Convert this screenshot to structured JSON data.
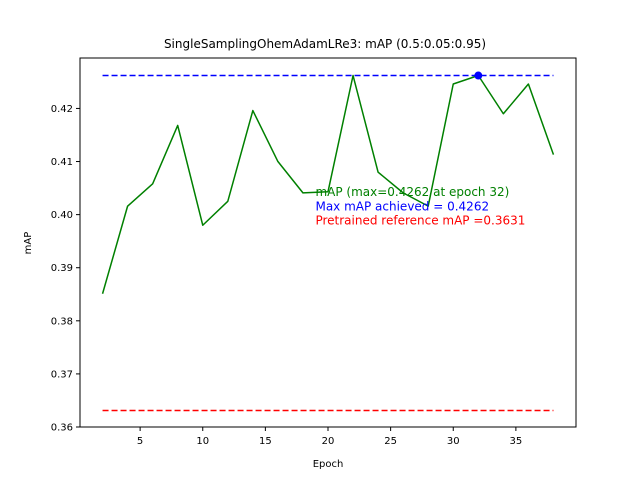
{
  "chart_data": {
    "type": "line",
    "title": "SingleSamplingOhemAdamLRe3:  mAP (0.5:0.05:0.95)",
    "xlabel": "Epoch",
    "ylabel": "mAP",
    "xlim": [
      0.2,
      39.8
    ],
    "ylim": [
      0.36,
      0.4295
    ],
    "xticks": [
      5,
      10,
      15,
      20,
      25,
      30,
      35
    ],
    "yticks": [
      0.36,
      0.37,
      0.38,
      0.39,
      0.4,
      0.41,
      0.42
    ],
    "ytick_labels": [
      "0.36",
      "0.37",
      "0.38",
      "0.39",
      "0.40",
      "0.41",
      "0.42"
    ],
    "grid": false,
    "series": [
      {
        "color": "#008000",
        "x": [
          2,
          4,
          6,
          8,
          10,
          12,
          14,
          16,
          18,
          20,
          22,
          24,
          26,
          28,
          30,
          32,
          34,
          36,
          38
        ],
        "y": [
          0.3851,
          0.4016,
          0.4058,
          0.4168,
          0.398,
          0.4025,
          0.4196,
          0.41,
          0.4041,
          0.4043,
          0.4262,
          0.408,
          0.4041,
          0.4016,
          0.4246,
          0.4262,
          0.419,
          0.4246,
          0.4113
        ]
      }
    ],
    "hlines": [
      {
        "y": 0.4262,
        "x_from": 2,
        "x_to": 38,
        "color": "#0000ff",
        "style": "dashed"
      },
      {
        "y": 0.3631,
        "x_from": 2,
        "x_to": 38,
        "color": "#ff0000",
        "style": "dashed"
      }
    ],
    "marker": {
      "x": 32,
      "y": 0.4262,
      "color": "#0000ff"
    },
    "annotations": [
      {
        "text": "mAP (max=0.4262 at epoch 32)",
        "x": 19,
        "y": 0.4035,
        "color": "#008000"
      },
      {
        "text": "Max mAP achieved = 0.4262",
        "x": 19,
        "y": 0.4008,
        "color": "#0000ff"
      },
      {
        "text": "Pretrained reference mAP =0.3631",
        "x": 19,
        "y": 0.3981,
        "color": "#ff0000"
      }
    ]
  }
}
